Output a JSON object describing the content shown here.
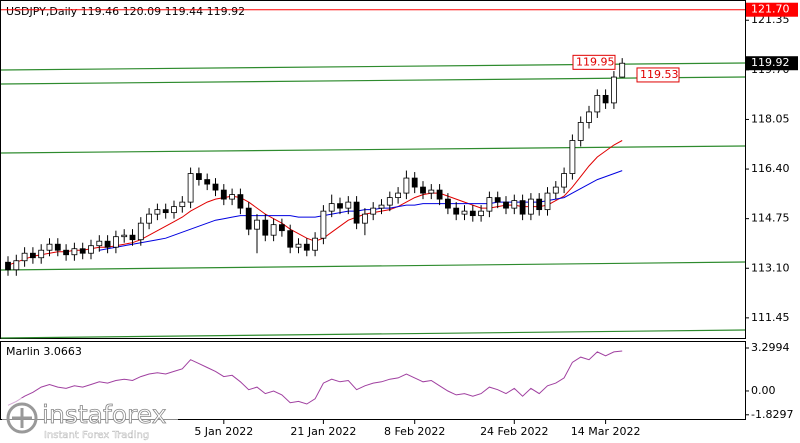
{
  "chart_data": [
    {
      "type": "candlestick",
      "title": "USDJPY,Daily  119.46 120.09 119.44 119.92",
      "categories": [
        null,
        null,
        null,
        null,
        null,
        null,
        null,
        null,
        null,
        null,
        null,
        null,
        null,
        null,
        null,
        null,
        null,
        null,
        null,
        null,
        null,
        null,
        null,
        null,
        null,
        null,
        "5 Jan 2022",
        null,
        null,
        null,
        null,
        null,
        null,
        null,
        null,
        null,
        null,
        null,
        "21 Jan 2022",
        null,
        null,
        null,
        null,
        null,
        null,
        null,
        null,
        null,
        null,
        "8 Feb 2022",
        null,
        null,
        null,
        null,
        null,
        null,
        null,
        null,
        null,
        null,
        null,
        "24 Feb 2022",
        null,
        null,
        null,
        null,
        null,
        null,
        null,
        null,
        null,
        null,
        "14 Mar 2022",
        null,
        null
      ],
      "open": [
        113.3,
        113.05,
        113.35,
        113.6,
        113.45,
        113.7,
        113.9,
        113.7,
        113.55,
        113.75,
        113.6,
        113.85,
        114.0,
        113.8,
        114.15,
        114.2,
        114.05,
        114.6,
        114.9,
        115.05,
        114.95,
        115.15,
        115.3,
        116.25,
        116.05,
        115.9,
        115.7,
        115.4,
        115.55,
        115.1,
        114.4,
        114.7,
        114.2,
        114.55,
        114.35,
        113.8,
        113.9,
        113.7,
        114.1,
        115.0,
        115.25,
        115.1,
        115.3,
        114.6,
        114.9,
        115.1,
        115.2,
        115.45,
        115.6,
        116.1,
        115.8,
        115.6,
        115.7,
        115.4,
        115.1,
        114.9,
        115.0,
        114.85,
        115.0,
        115.45,
        115.3,
        115.1,
        115.35,
        114.9,
        115.4,
        115.05,
        115.6,
        115.8,
        116.25,
        117.35,
        117.95,
        118.3,
        118.85,
        118.6,
        119.46
      ],
      "high": [
        113.5,
        113.55,
        113.8,
        113.8,
        113.9,
        114.1,
        114.1,
        113.9,
        113.95,
        113.95,
        114.05,
        114.2,
        114.2,
        114.35,
        114.4,
        114.4,
        114.8,
        115.1,
        115.25,
        115.25,
        115.35,
        115.5,
        116.45,
        116.45,
        116.25,
        116.1,
        115.9,
        115.75,
        115.75,
        115.3,
        114.9,
        114.9,
        114.75,
        114.75,
        114.55,
        114.1,
        114.1,
        114.3,
        115.2,
        115.55,
        115.45,
        115.5,
        115.5,
        115.1,
        115.3,
        115.4,
        115.65,
        115.8,
        116.35,
        116.3,
        116.0,
        115.9,
        115.9,
        115.6,
        115.3,
        115.2,
        115.2,
        115.2,
        115.65,
        115.65,
        115.5,
        115.55,
        115.55,
        115.6,
        115.6,
        115.8,
        116.0,
        116.45,
        117.55,
        118.15,
        118.5,
        119.05,
        119.05,
        119.66,
        120.09
      ],
      "low": [
        112.85,
        112.85,
        113.15,
        113.25,
        113.25,
        113.5,
        113.5,
        113.35,
        113.35,
        113.4,
        113.4,
        113.65,
        113.6,
        113.6,
        113.95,
        113.85,
        113.85,
        114.4,
        114.7,
        114.75,
        114.75,
        114.95,
        115.1,
        115.85,
        115.7,
        115.5,
        115.2,
        115.2,
        114.9,
        114.2,
        113.6,
        114.0,
        114.0,
        114.15,
        113.6,
        113.6,
        113.5,
        113.5,
        113.9,
        114.8,
        114.9,
        114.9,
        114.4,
        114.2,
        114.7,
        114.9,
        115.0,
        115.25,
        115.4,
        115.6,
        115.4,
        115.4,
        115.2,
        114.9,
        114.7,
        114.7,
        114.65,
        114.65,
        114.8,
        115.1,
        114.9,
        114.9,
        114.7,
        114.7,
        114.85,
        114.85,
        115.4,
        115.6,
        116.05,
        117.15,
        117.75,
        118.1,
        118.4,
        118.4,
        119.44
      ],
      "close": [
        113.05,
        113.35,
        113.6,
        113.45,
        113.7,
        113.9,
        113.7,
        113.55,
        113.75,
        113.6,
        113.85,
        114.0,
        113.8,
        114.15,
        114.2,
        114.05,
        114.6,
        114.9,
        115.05,
        114.95,
        115.15,
        115.3,
        116.25,
        116.05,
        115.9,
        115.7,
        115.4,
        115.55,
        115.1,
        114.4,
        114.7,
        114.2,
        114.55,
        114.35,
        113.8,
        113.9,
        113.7,
        114.1,
        115.0,
        115.25,
        115.1,
        115.3,
        114.6,
        114.9,
        115.1,
        115.2,
        115.45,
        115.6,
        116.1,
        115.8,
        115.6,
        115.7,
        115.4,
        115.1,
        114.9,
        115.0,
        114.85,
        115.0,
        115.45,
        115.3,
        115.1,
        115.35,
        114.9,
        115.4,
        115.05,
        115.6,
        115.8,
        116.25,
        117.35,
        117.95,
        118.3,
        118.85,
        118.6,
        119.46,
        119.92
      ],
      "overlays": [
        {
          "color": "#e00000",
          "values": [
            113.2,
            113.3,
            113.4,
            113.5,
            113.55,
            113.6,
            113.65,
            113.65,
            113.7,
            113.7,
            113.75,
            113.8,
            113.8,
            113.85,
            113.9,
            113.95,
            114.05,
            114.2,
            114.35,
            114.5,
            114.65,
            114.8,
            115.0,
            115.15,
            115.3,
            115.4,
            115.45,
            115.5,
            115.45,
            115.3,
            115.1,
            114.9,
            114.75,
            114.6,
            114.4,
            114.25,
            114.1,
            114.0,
            114.1,
            114.3,
            114.5,
            114.7,
            114.8,
            114.9,
            114.95,
            115.0,
            115.05,
            115.15,
            115.3,
            115.45,
            115.55,
            115.6,
            115.6,
            115.5,
            115.4,
            115.3,
            115.2,
            115.1,
            115.1,
            115.15,
            115.2,
            115.2,
            115.15,
            115.15,
            115.15,
            115.2,
            115.35,
            115.5,
            115.8,
            116.15,
            116.5,
            116.8,
            117.0,
            117.2,
            117.35
          ]
        },
        {
          "color": "#0000e0",
          "values": [
            null,
            null,
            null,
            null,
            null,
            null,
            null,
            null,
            null,
            null,
            null,
            113.7,
            113.75,
            113.8,
            113.85,
            113.9,
            113.95,
            114.0,
            114.05,
            114.1,
            114.2,
            114.3,
            114.4,
            114.5,
            114.6,
            114.7,
            114.75,
            114.8,
            114.85,
            114.85,
            114.85,
            114.85,
            114.85,
            114.85,
            114.85,
            114.8,
            114.8,
            114.8,
            114.85,
            114.9,
            114.95,
            115.0,
            115.0,
            115.05,
            115.05,
            115.1,
            115.1,
            115.15,
            115.2,
            115.2,
            115.25,
            115.25,
            115.25,
            115.25,
            115.25,
            115.25,
            115.25,
            115.25,
            115.25,
            115.3,
            115.3,
            115.3,
            115.3,
            115.3,
            115.3,
            115.35,
            115.4,
            115.45,
            115.6,
            115.75,
            115.9,
            116.05,
            116.15,
            116.25,
            116.35
          ]
        }
      ],
      "ylim": [
        110.78,
        121.99
      ],
      "yticks": [
        121.35,
        {
          "value": 119.7,
          "label": "119.70"
        },
        118.05,
        {
          "value": 116.4,
          "label": "116.40"
        },
        114.75,
        {
          "value": 113.1,
          "label": "113.10"
        },
        111.45
      ],
      "grid": false,
      "level": {
        "value": 121.7,
        "label": "121.70",
        "color": "#ff0000"
      },
      "price": {
        "value": 119.92,
        "label": "119.92"
      },
      "annotations": [
        {
          "value": 119.95,
          "label": "119.95"
        },
        {
          "value": 119.53,
          "label": "119.53"
        }
      ]
    },
    {
      "type": "line",
      "title": "Marlin 3.0663",
      "color": "#a040a0",
      "values": [
        -1.1,
        -0.8,
        -0.4,
        -0.1,
        0.3,
        0.5,
        0.3,
        0.2,
        0.4,
        0.3,
        0.5,
        0.7,
        0.6,
        0.8,
        0.9,
        0.8,
        1.1,
        1.3,
        1.4,
        1.3,
        1.5,
        1.7,
        2.4,
        2.1,
        1.8,
        1.5,
        1.1,
        1.2,
        0.7,
        0.1,
        0.3,
        -0.2,
        0.0,
        -0.3,
        -0.9,
        -0.8,
        -1.0,
        -0.6,
        0.6,
        0.9,
        0.7,
        0.8,
        0.1,
        0.4,
        0.6,
        0.7,
        0.9,
        1.0,
        1.3,
        1.0,
        0.7,
        0.8,
        0.4,
        0.0,
        -0.3,
        -0.2,
        -0.4,
        -0.2,
        0.3,
        0.1,
        -0.2,
        0.2,
        -0.4,
        0.2,
        -0.2,
        0.4,
        0.6,
        1.0,
        2.2,
        2.6,
        2.4,
        3.0,
        2.7,
        3.0,
        3.0663
      ],
      "ylim": [
        -2.23,
        3.76
      ],
      "yticks": [
        3.2994,
        {
          "value": 0,
          "label": "0.00"
        },
        -1.8297
      ],
      "grid": false
    }
  ],
  "watermark": {
    "brand": "instaforex",
    "tagline": "Instant Forex Trading"
  }
}
